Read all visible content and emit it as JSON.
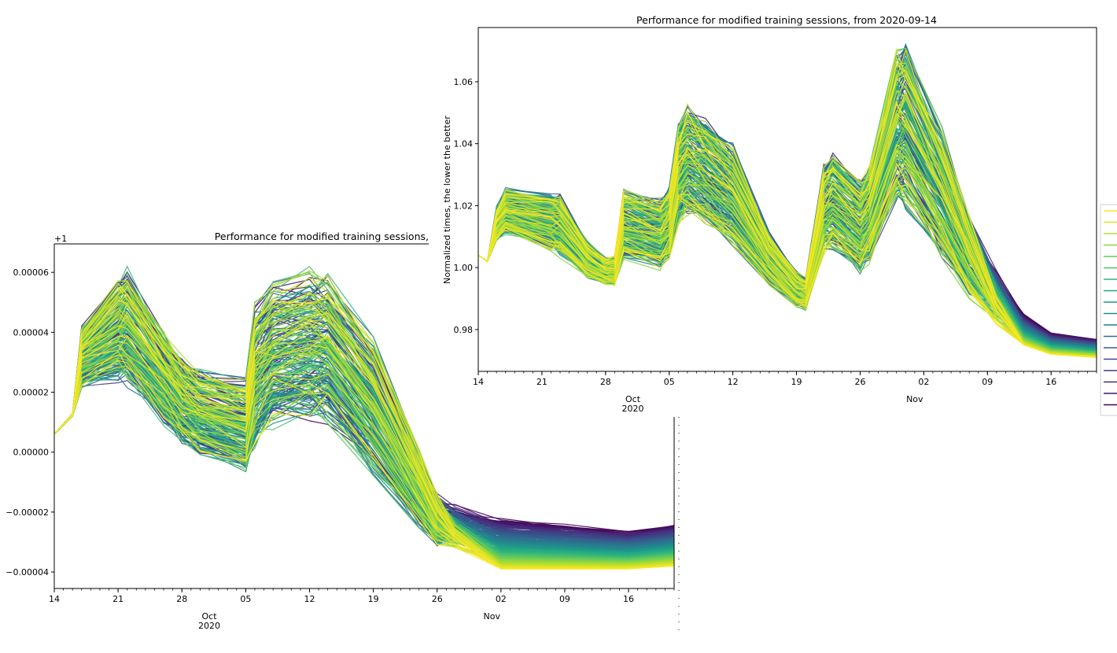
{
  "chart_data": [
    {
      "type": "line",
      "title": "Performance for modified training sessions,",
      "offset_label": "+1",
      "ylabel": "",
      "xlabel": "",
      "ylim": [
        -4.55e-05,
        6.95e-05
      ],
      "xlim": [
        "2020-09-14",
        "2020-11-21"
      ],
      "yticks": [
        6e-05,
        4e-05,
        2e-05,
        0.0,
        -2e-05,
        -4e-05
      ],
      "ytick_labels": [
        "0.00006",
        "0.00004",
        "0.00002",
        "0.00000",
        "−0.00002",
        "−0.00004"
      ],
      "xticks": [
        "2020-09-14",
        "2020-09-21",
        "2020-09-28",
        "2020-10-05",
        "2020-10-12",
        "2020-10-19",
        "2020-10-26",
        "2020-11-02",
        "2020-11-09",
        "2020-11-16"
      ],
      "xtick_labels": [
        "14",
        "21",
        "28",
        "05",
        "12",
        "19",
        "26",
        "02",
        "09",
        "16"
      ],
      "month_labels": [
        {
          "date": "2020-10-01",
          "label": "Oct",
          "year": "2020"
        },
        {
          "date": "2020-11-01",
          "label": "Nov",
          "year": ""
        }
      ],
      "series_count": 220,
      "colormap": "viridis",
      "x": [
        "2020-09-14",
        "2020-09-16",
        "2020-09-17",
        "2020-09-21",
        "2020-09-22",
        "2020-09-26",
        "2020-09-28",
        "2020-09-30",
        "2020-10-05",
        "2020-10-06",
        "2020-10-08",
        "2020-10-12",
        "2020-10-14",
        "2020-10-19",
        "2020-10-24",
        "2020-10-26",
        "2020-10-28",
        "2020-11-02",
        "2020-11-09",
        "2020-11-16",
        "2020-11-21"
      ],
      "envelope_low": [
        6e-06,
        1.2e-05,
        2.1e-05,
        2.2e-05,
        2e-05,
        8e-06,
        1e-06,
        -2e-06,
        -8e-06,
        -1e-06,
        6e-06,
        8e-06,
        8e-06,
        -1e-05,
        -2.6e-05,
        -3.3e-05,
        -3.4e-05,
        -3.9e-05,
        -3.9e-05,
        -3.9e-05,
        -3.8e-05
      ],
      "envelope_high": [
        6e-06,
        1.3e-05,
        4.3e-05,
        6e-05,
        6.3e-05,
        4.3e-05,
        3.3e-05,
        2.9e-05,
        2.6e-05,
        5.2e-05,
        6e-05,
        6.4e-05,
        6.2e-05,
        4e-05,
        2e-06,
        -1.3e-05,
        -1.6e-05,
        -2.2e-05,
        -2.4e-05,
        -2.6e-05,
        -2.4e-05
      ]
    },
    {
      "type": "line",
      "title": "Performance for modified training sessions, from 2020-09-14",
      "ylabel": "Normalized times, the lower the better",
      "xlabel": "",
      "ylim": [
        0.9665,
        1.0775
      ],
      "xlim": [
        "2020-09-14",
        "2020-11-21"
      ],
      "yticks": [
        1.06,
        1.04,
        1.02,
        1.0,
        0.98
      ],
      "ytick_labels": [
        "1.06",
        "1.04",
        "1.02",
        "1.00",
        "0.98"
      ],
      "xticks": [
        "2020-09-14",
        "2020-09-21",
        "2020-09-28",
        "2020-10-05",
        "2020-10-12",
        "2020-10-19",
        "2020-10-26",
        "2020-11-02",
        "2020-11-09",
        "2020-11-16"
      ],
      "xtick_labels": [
        "14",
        "21",
        "28",
        "05",
        "12",
        "19",
        "26",
        "02",
        "09",
        "16"
      ],
      "month_labels": [
        {
          "date": "2020-10-01",
          "label": "Oct",
          "year": "2020"
        },
        {
          "date": "2020-11-01",
          "label": "Nov",
          "year": ""
        }
      ],
      "series_count": 220,
      "colormap": "viridis",
      "x": [
        "2020-09-14",
        "2020-09-15",
        "2020-09-16",
        "2020-09-17",
        "2020-09-22",
        "2020-09-23",
        "2020-09-26",
        "2020-09-28",
        "2020-09-29",
        "2020-09-30",
        "2020-10-04",
        "2020-10-05",
        "2020-10-06",
        "2020-10-07",
        "2020-10-09",
        "2020-10-12",
        "2020-10-16",
        "2020-10-19",
        "2020-10-20",
        "2020-10-22",
        "2020-10-23",
        "2020-10-26",
        "2020-10-27",
        "2020-10-30",
        "2020-10-31",
        "2020-11-04",
        "2020-11-07",
        "2020-11-10",
        "2020-11-13",
        "2020-11-16",
        "2020-11-21"
      ],
      "envelope_low": [
        1.004,
        1.002,
        1.008,
        1.01,
        1.005,
        1.003,
        0.996,
        0.994,
        0.994,
        1.002,
        0.999,
        1.002,
        1.013,
        1.015,
        1.012,
        1.005,
        0.994,
        0.987,
        0.986,
        1.003,
        1.004,
        0.997,
        1.0,
        1.018,
        1.017,
        1.0,
        0.989,
        0.98,
        0.975,
        0.972,
        0.971
      ],
      "envelope_high": [
        1.004,
        1.002,
        1.02,
        1.026,
        1.024,
        1.024,
        1.009,
        1.004,
        1.004,
        1.026,
        1.023,
        1.027,
        1.048,
        1.054,
        1.049,
        1.041,
        1.012,
        0.999,
        0.997,
        1.034,
        1.038,
        1.03,
        1.034,
        1.072,
        1.073,
        1.046,
        1.018,
        1.001,
        0.985,
        0.979,
        0.977
      ]
    }
  ]
}
